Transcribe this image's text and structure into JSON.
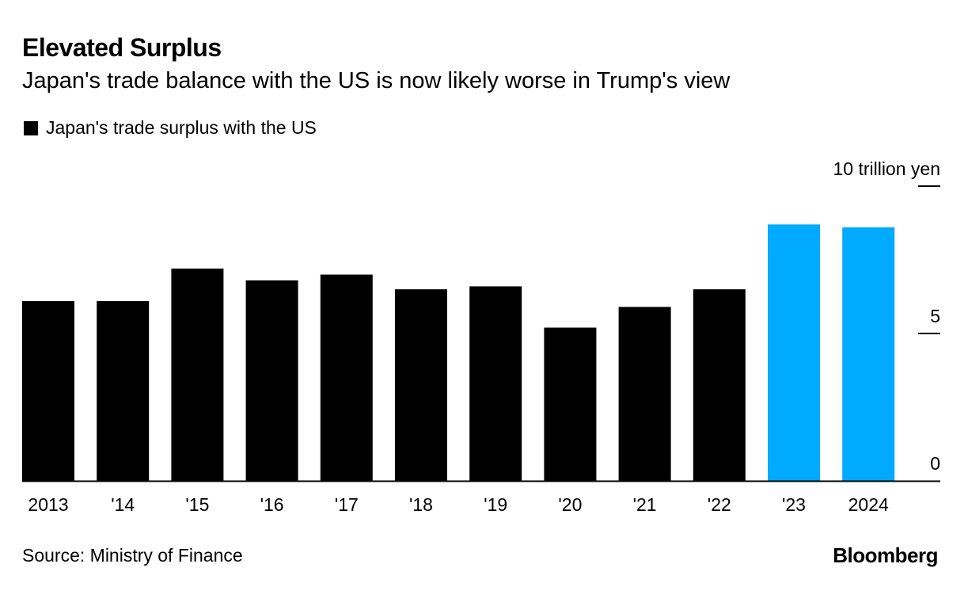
{
  "header": {
    "title": "Elevated Surplus",
    "subtitle": "Japan's trade balance with the US is now likely worse in Trump's view"
  },
  "footer": {
    "source": "Source: Ministry of Finance",
    "brand": "Bloomberg"
  },
  "colors": {
    "default": "#000000",
    "highlight": "#00aaff"
  },
  "chart_data": {
    "type": "bar",
    "title": "Elevated Surplus",
    "legend": [
      "Japan's trade surplus with the US"
    ],
    "categories": [
      "2013",
      "'14",
      "'15",
      "'16",
      "'17",
      "'18",
      "'19",
      "'20",
      "'21",
      "'22",
      "'23",
      "2024"
    ],
    "series": [
      {
        "name": "Japan's trade surplus with the US",
        "values": [
          6.1,
          6.1,
          7.2,
          6.8,
          7.0,
          6.5,
          6.6,
          5.2,
          5.9,
          6.5,
          8.7,
          8.6
        ]
      }
    ],
    "highlighted": [
      "'23",
      "2024"
    ],
    "yticks": [
      {
        "value": 0,
        "label": "0"
      },
      {
        "value": 5,
        "label": "5"
      },
      {
        "value": 10,
        "label": "10 trillion yen"
      }
    ],
    "ylim": [
      0,
      10
    ],
    "xlabel": "",
    "ylabel": "trillion yen",
    "grid": false,
    "legend_position": "top-left"
  }
}
